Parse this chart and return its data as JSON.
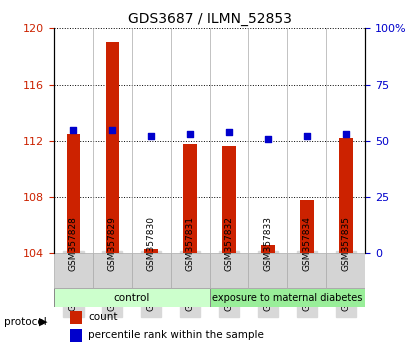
{
  "title": "GDS3687 / ILMN_52853",
  "samples": [
    "GSM357828",
    "GSM357829",
    "GSM357830",
    "GSM357831",
    "GSM357832",
    "GSM357833",
    "GSM357834",
    "GSM357835"
  ],
  "red_values": [
    112.5,
    119.0,
    104.3,
    111.8,
    111.6,
    104.6,
    107.8,
    112.2
  ],
  "blue_values": [
    55,
    55,
    52,
    53,
    54,
    51,
    52,
    53
  ],
  "ylim_left": [
    104,
    120
  ],
  "ylim_right": [
    0,
    100
  ],
  "yticks_left": [
    104,
    108,
    112,
    116,
    120
  ],
  "yticks_right": [
    0,
    25,
    50,
    75,
    100
  ],
  "ytick_labels_right": [
    "0",
    "25",
    "50",
    "75",
    "100%"
  ],
  "bar_color": "#cc2200",
  "dot_color": "#0000cc",
  "background_color": "#ffffff",
  "control_color": "#ccffcc",
  "diabetes_color": "#99ee99",
  "control_label": "control",
  "diabetes_label": "exposure to maternal diabetes",
  "protocol_label": "protocol",
  "legend_count": "count",
  "legend_percentile": "percentile rank within the sample",
  "control_samples": 4,
  "diabetes_samples": 4,
  "grid_color": "#000000",
  "tick_label_color_left": "#cc2200",
  "tick_label_color_right": "#0000cc"
}
